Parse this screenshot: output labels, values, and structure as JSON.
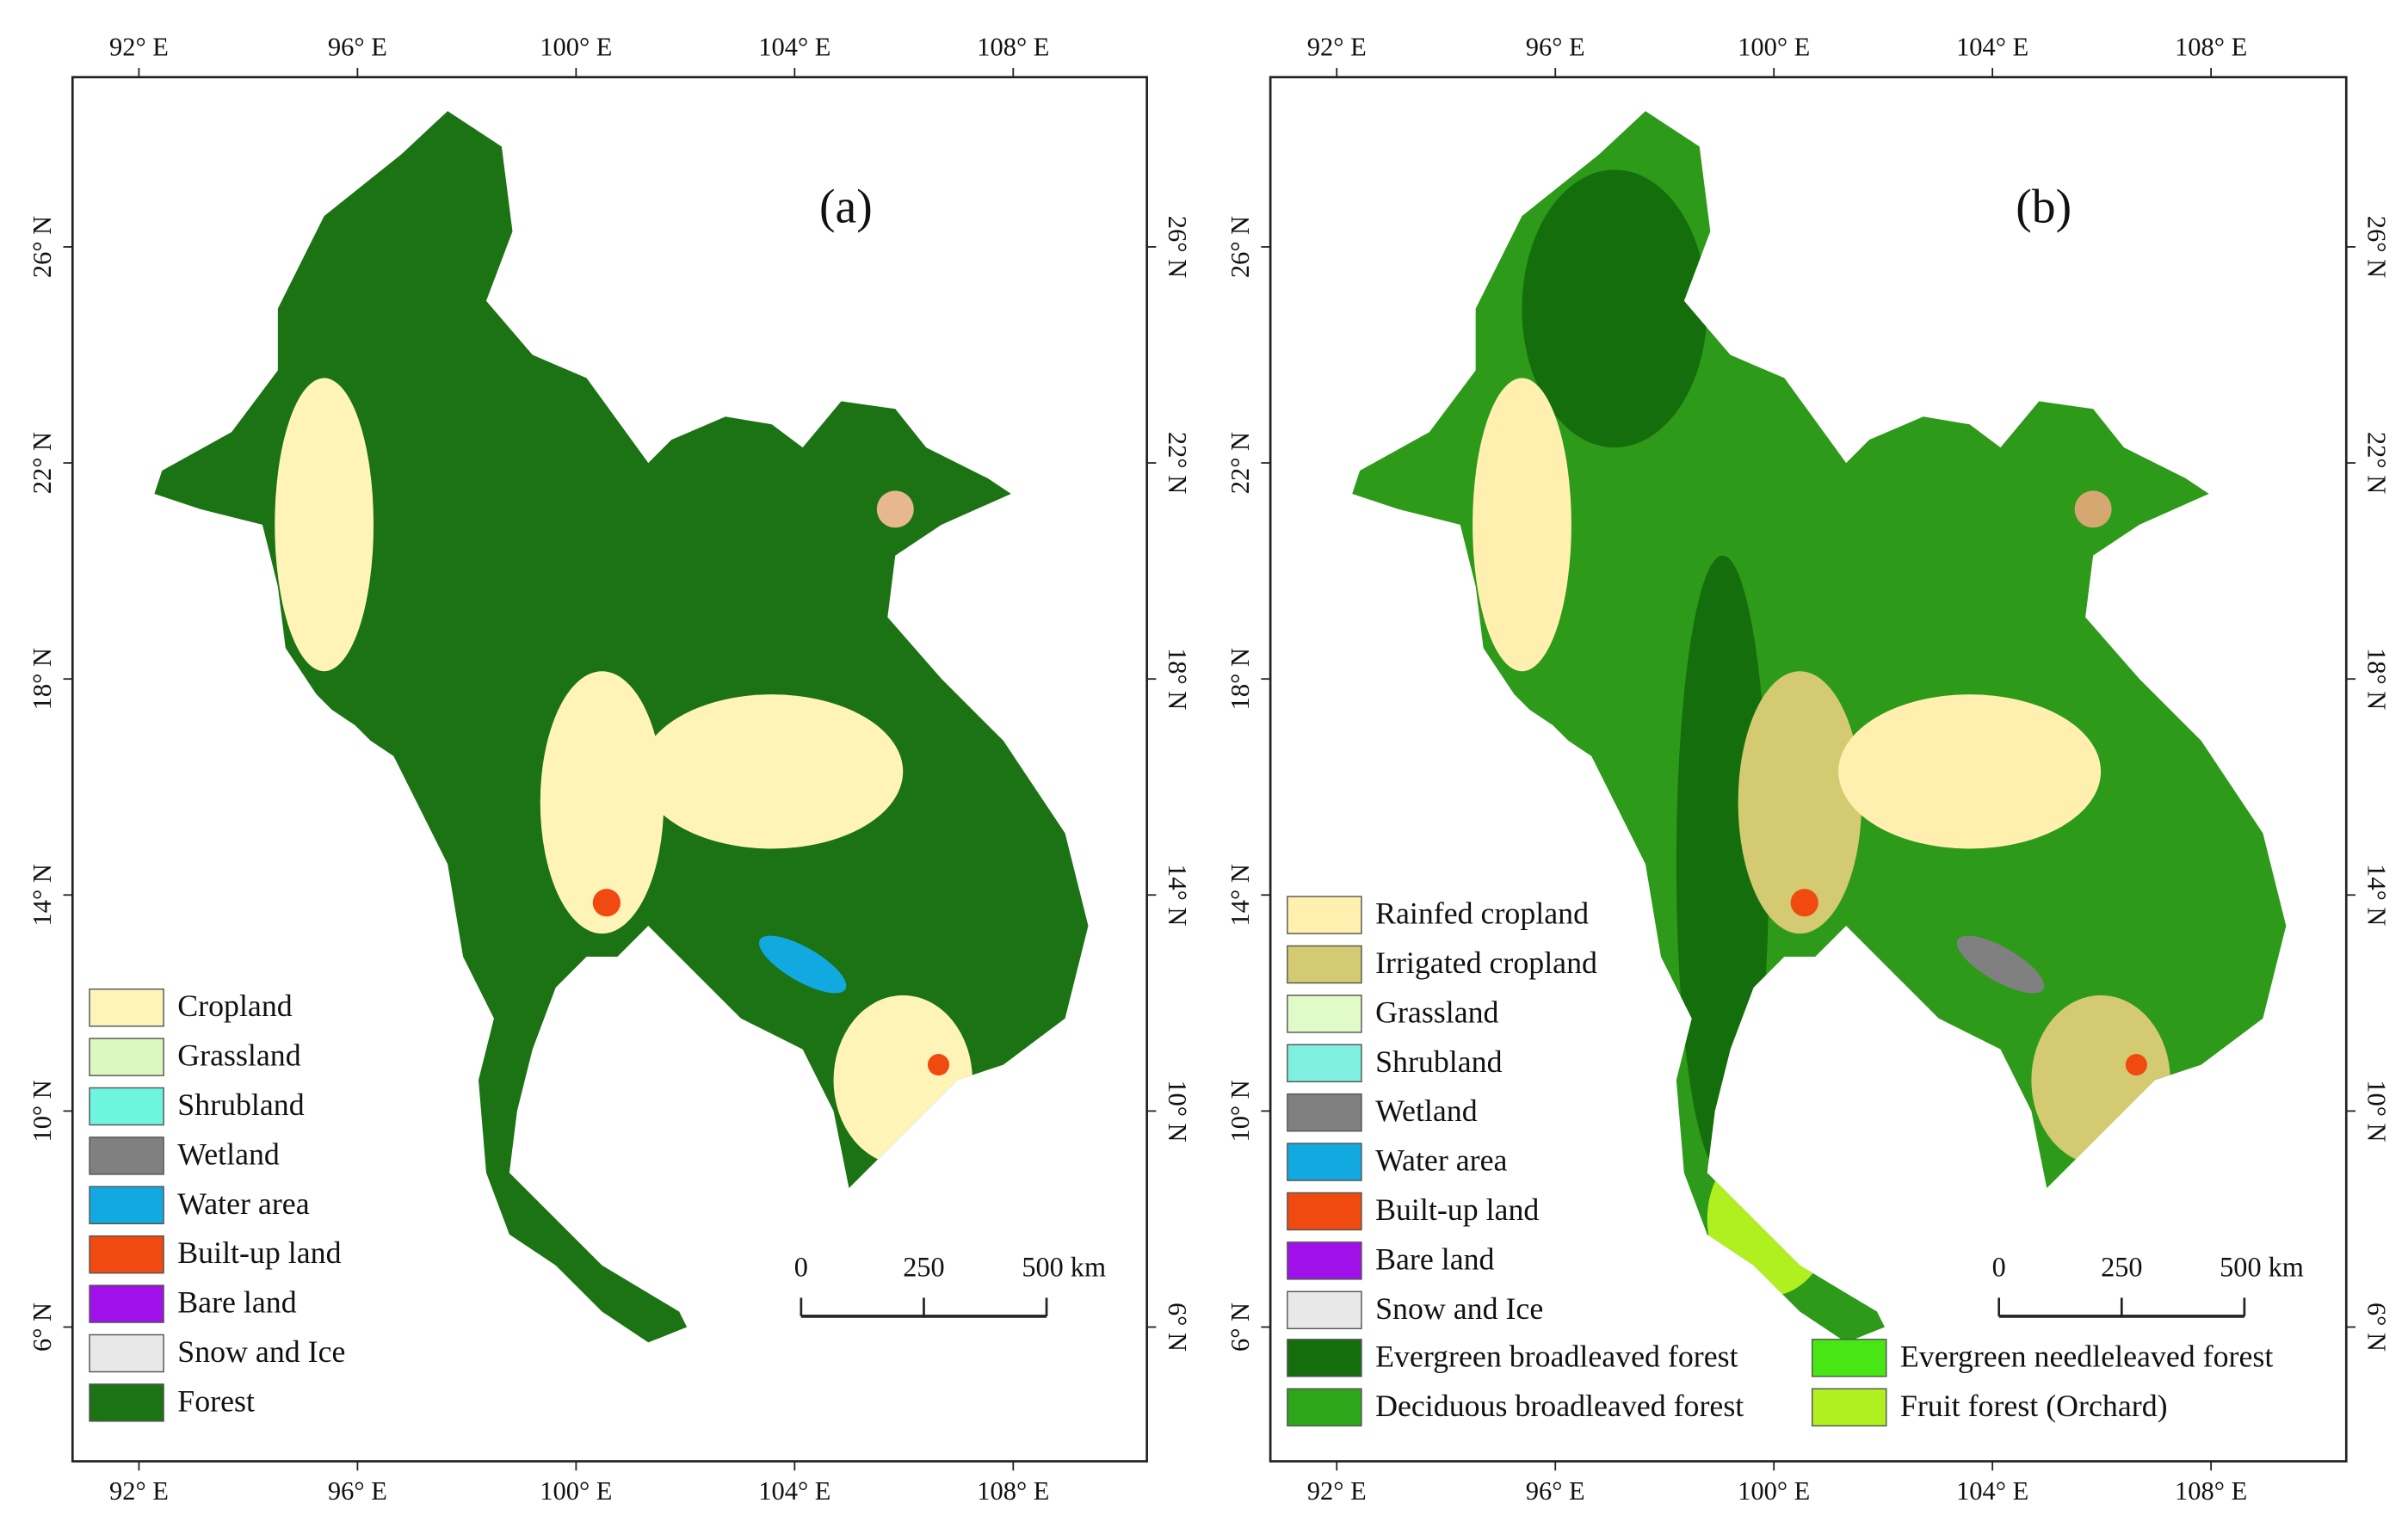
{
  "panels": [
    {
      "label": "(a)",
      "lon_ticks": [
        {
          "value": 92,
          "label": "92° E"
        },
        {
          "value": 96,
          "label": "96° E"
        },
        {
          "value": 100,
          "label": "100° E"
        },
        {
          "value": 104,
          "label": "104° E"
        },
        {
          "value": 108,
          "label": "108° E"
        }
      ],
      "lat_ticks": [
        {
          "value": 26,
          "label": "26° N"
        },
        {
          "value": 22,
          "label": "22° N"
        },
        {
          "value": 18,
          "label": "18° N"
        },
        {
          "value": 14,
          "label": "14° N"
        },
        {
          "value": 10,
          "label": "10° N"
        },
        {
          "value": 6,
          "label": "6° N"
        }
      ],
      "legend": [
        {
          "label": "Cropland",
          "color": "#fff4b8"
        },
        {
          "label": "Grassland",
          "color": "#dcf8c0"
        },
        {
          "label": "Shrubland",
          "color": "#6ef5e0"
        },
        {
          "label": "Wetland",
          "color": "#808080"
        },
        {
          "label": "Water area",
          "color": "#12a9e0"
        },
        {
          "label": "Built-up land",
          "color": "#f04a10"
        },
        {
          "label": "Bare land",
          "color": "#a010e8"
        },
        {
          "label": "Snow and Ice",
          "color": "#e8e8e8"
        },
        {
          "label": "Forest",
          "color": "#1b7314"
        }
      ],
      "scale_bar": {
        "ticks": [
          0,
          250,
          {
            "value": 500,
            "label": "500 km"
          }
        ]
      }
    },
    {
      "label": "(b)",
      "lon_ticks": [
        {
          "value": 92,
          "label": "92° E"
        },
        {
          "value": 96,
          "label": "96° E"
        },
        {
          "value": 100,
          "label": "100° E"
        },
        {
          "value": 104,
          "label": "104° E"
        },
        {
          "value": 108,
          "label": "108° E"
        }
      ],
      "lat_ticks": [
        {
          "value": 26,
          "label": "26° N"
        },
        {
          "value": 22,
          "label": "22° N"
        },
        {
          "value": 18,
          "label": "18° N"
        },
        {
          "value": 14,
          "label": "14° N"
        },
        {
          "value": 10,
          "label": "10° N"
        },
        {
          "value": 6,
          "label": "6° N"
        }
      ],
      "legend": [
        {
          "label": "Rainfed cropland",
          "color": "#fff0b0"
        },
        {
          "label": "Irrigated cropland",
          "color": "#d4ca72"
        },
        {
          "label": "Grassland",
          "color": "#e0fbc8"
        },
        {
          "label": "Shrubland",
          "color": "#7ff0e0"
        },
        {
          "label": "Wetland",
          "color": "#808080"
        },
        {
          "label": "Water area",
          "color": "#12a9e0"
        },
        {
          "label": "Built-up land",
          "color": "#f04a10"
        },
        {
          "label": "Bare land",
          "color": "#a010e8"
        },
        {
          "label": "Snow and Ice",
          "color": "#e8e8e8"
        },
        {
          "label": "Evergreen broadleaved forest",
          "color": "#146e0c"
        },
        {
          "label": "Evergreen needleleaved forest",
          "color": "#48e614"
        },
        {
          "label": "Deciduous broadleaved forest",
          "color": "#2ea61a"
        },
        {
          "label": "Fruit forest (Orchard)",
          "color": "#b0f020"
        }
      ],
      "scale_bar": {
        "ticks": [
          0,
          250,
          {
            "value": 500,
            "label": "500 km"
          }
        ]
      }
    }
  ]
}
